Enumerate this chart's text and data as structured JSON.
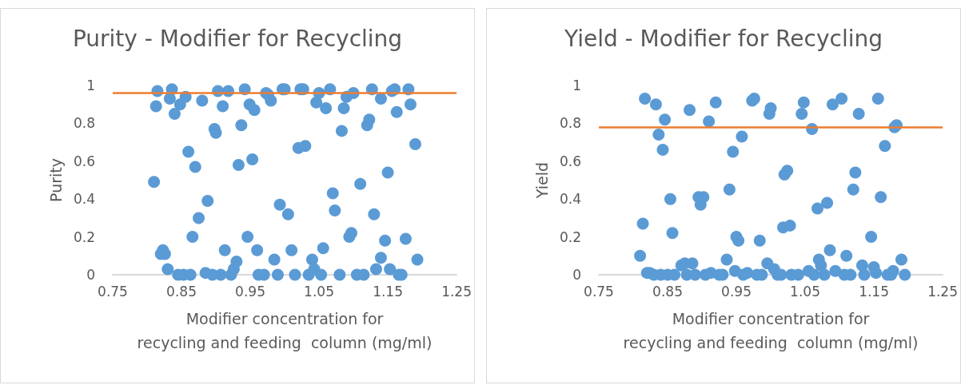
{
  "chart_data": [
    {
      "type": "scatter",
      "title": "Purity - Modifier for Recycling",
      "xlabel": "Modifier concentration for recycling and feeding  column (mg/ml)",
      "ylabel": "Purity",
      "color": "#5b9bd5",
      "marker": "circle",
      "grid": false,
      "xlim": [
        0.75,
        1.25
      ],
      "xticks": [
        0.75,
        0.85,
        0.95,
        1.05,
        1.15,
        1.25
      ],
      "ylim": [
        0,
        1
      ],
      "yticks": [
        0,
        0.2,
        0.4,
        0.6,
        0.8,
        1
      ],
      "ref_lines": [
        {
          "axis": "y",
          "value": 0.96,
          "color": "#ed7d31"
        }
      ],
      "x": [
        0.81,
        0.813,
        0.815,
        0.82,
        0.823,
        0.826,
        0.83,
        0.833,
        0.836,
        0.84,
        0.845,
        0.848,
        0.853,
        0.856,
        0.86,
        0.863,
        0.866,
        0.87,
        0.875,
        0.88,
        0.885,
        0.888,
        0.895,
        0.898,
        0.9,
        0.903,
        0.907,
        0.91,
        0.913,
        0.918,
        0.922,
        0.926,
        0.93,
        0.933,
        0.937,
        0.942,
        0.946,
        0.949,
        0.953,
        0.956,
        0.96,
        0.962,
        0.97,
        0.973,
        0.976,
        0.98,
        0.985,
        0.99,
        0.993,
        0.997,
        1.0,
        1.005,
        1.01,
        1.015,
        1.02,
        1.023,
        1.027,
        1.03,
        1.035,
        1.04,
        1.043,
        1.046,
        1.05,
        1.053,
        1.056,
        1.06,
        1.066,
        1.07,
        1.073,
        1.08,
        1.083,
        1.086,
        1.09,
        1.094,
        1.097,
        1.1,
        1.105,
        1.11,
        1.115,
        1.12,
        1.123,
        1.127,
        1.13,
        1.133,
        1.14,
        1.14,
        1.146,
        1.15,
        1.153,
        1.156,
        1.16,
        1.163,
        1.166,
        1.17,
        1.176,
        1.18,
        1.183,
        1.19,
        1.193
      ],
      "values": [
        0.49,
        0.89,
        0.97,
        0.11,
        0.13,
        0.11,
        0.03,
        0.93,
        0.98,
        0.85,
        0.0,
        0.9,
        0.0,
        0.94,
        0.65,
        0.0,
        0.2,
        0.57,
        0.3,
        0.92,
        0.01,
        0.39,
        0.0,
        0.77,
        0.75,
        0.97,
        0.0,
        0.89,
        0.13,
        0.97,
        0.0,
        0.03,
        0.07,
        0.58,
        0.79,
        0.98,
        0.2,
        0.9,
        0.61,
        0.87,
        0.13,
        0.0,
        0.0,
        0.96,
        0.95,
        0.92,
        0.08,
        0.0,
        0.37,
        0.98,
        0.98,
        0.32,
        0.13,
        0.0,
        0.67,
        0.98,
        0.98,
        0.68,
        0.0,
        0.08,
        0.03,
        0.91,
        0.96,
        0.0,
        0.14,
        0.88,
        0.98,
        0.43,
        0.34,
        0.0,
        0.76,
        0.88,
        0.94,
        0.2,
        0.22,
        0.96,
        0.0,
        0.48,
        0.0,
        0.79,
        0.82,
        0.98,
        0.32,
        0.03,
        0.09,
        0.93,
        0.18,
        0.54,
        0.03,
        0.97,
        0.98,
        0.86,
        0.0,
        0.0,
        0.19,
        0.98,
        0.9,
        0.69,
        0.08
      ]
    },
    {
      "type": "scatter",
      "title": "Yield - Modifier for Recycling",
      "xlabel": "Modifier concentration for recycling and feeding  column (mg/ml)",
      "ylabel": "Yield",
      "color": "#5b9bd5",
      "marker": "circle",
      "grid": false,
      "xlim": [
        0.75,
        1.25
      ],
      "xticks": [
        0.75,
        0.85,
        0.95,
        1.05,
        1.15,
        1.25
      ],
      "ylim": [
        0,
        1
      ],
      "yticks": [
        0,
        0.2,
        0.4,
        0.6,
        0.8,
        1
      ],
      "ref_lines": [
        {
          "axis": "y",
          "value": 0.78,
          "color": "#ed7d31"
        }
      ],
      "x": [
        0.81,
        0.814,
        0.817,
        0.82,
        0.824,
        0.83,
        0.833,
        0.837,
        0.84,
        0.843,
        0.846,
        0.85,
        0.854,
        0.857,
        0.86,
        0.87,
        0.875,
        0.878,
        0.882,
        0.886,
        0.89,
        0.895,
        0.898,
        0.902,
        0.905,
        0.91,
        0.913,
        0.92,
        0.925,
        0.93,
        0.936,
        0.94,
        0.945,
        0.948,
        0.95,
        0.953,
        0.958,
        0.96,
        0.966,
        0.973,
        0.976,
        0.98,
        0.984,
        0.987,
        0.995,
        0.998,
        1.0,
        1.005,
        1.01,
        1.015,
        1.018,
        1.02,
        1.024,
        1.028,
        1.03,
        1.04,
        1.045,
        1.048,
        1.055,
        1.06,
        1.063,
        1.068,
        1.07,
        1.073,
        1.078,
        1.082,
        1.086,
        1.09,
        1.094,
        1.103,
        1.107,
        1.11,
        1.116,
        1.12,
        1.123,
        1.128,
        1.133,
        1.136,
        1.146,
        1.15,
        1.153,
        1.156,
        1.16,
        1.166,
        1.17,
        1.175,
        1.178,
        1.18,
        1.183,
        1.19,
        1.195
      ],
      "values": [
        0.1,
        0.27,
        0.93,
        0.01,
        0.01,
        0.0,
        0.9,
        0.74,
        0.0,
        0.66,
        0.82,
        0.0,
        0.4,
        0.22,
        0.0,
        0.05,
        0.06,
        0.0,
        0.87,
        0.06,
        0.0,
        0.41,
        0.37,
        0.41,
        0.0,
        0.81,
        0.01,
        0.91,
        0.0,
        0.0,
        0.08,
        0.45,
        0.65,
        0.02,
        0.2,
        0.18,
        0.73,
        0.0,
        0.01,
        0.92,
        0.93,
        0.0,
        0.18,
        0.0,
        0.06,
        0.85,
        0.88,
        0.03,
        0.0,
        0.0,
        0.25,
        0.53,
        0.55,
        0.26,
        0.0,
        0.0,
        0.85,
        0.91,
        0.02,
        0.77,
        0.0,
        0.35,
        0.08,
        0.05,
        0.0,
        0.38,
        0.13,
        0.9,
        0.02,
        0.93,
        0.0,
        0.1,
        0.0,
        0.45,
        0.54,
        0.85,
        0.05,
        0.0,
        0.2,
        0.04,
        0.01,
        0.93,
        0.41,
        0.68,
        0.0,
        0.0,
        0.02,
        0.78,
        0.79,
        0.08,
        0.0
      ]
    }
  ]
}
